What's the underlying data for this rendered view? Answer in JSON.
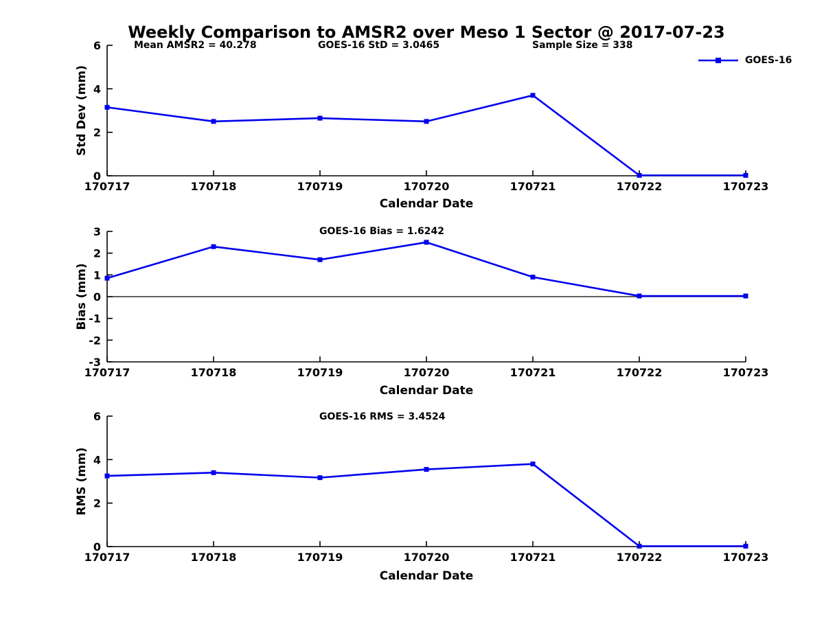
{
  "figure": {
    "title": "Weekly Comparison to AMSR2 over Meso 1 Sector @ 2017-07-23",
    "legend": {
      "label": "GOES-16"
    },
    "series_color": "#0000EE",
    "axis_color": "#000000"
  },
  "chart_data": [
    {
      "type": "line",
      "name": "std-dev",
      "ylabel": "Std Dev (mm)",
      "xlabel": "Calendar Date",
      "categories": [
        "170717",
        "170718",
        "170719",
        "170720",
        "170721",
        "170722",
        "170723"
      ],
      "series": [
        {
          "name": "GOES-16",
          "values": [
            3.15,
            2.5,
            2.65,
            2.5,
            3.7,
            0.02,
            0.02
          ]
        }
      ],
      "ylim": [
        0,
        6
      ],
      "yticks": [
        0,
        2,
        4,
        6
      ],
      "zero_line": false,
      "grid": false,
      "legend_position": "upper right",
      "annotations": [
        "Mean AMSR2 = 40.278",
        "GOES-16 StD = 3.0465",
        "Sample Size = 338"
      ]
    },
    {
      "type": "line",
      "name": "bias",
      "ylabel": "Bias (mm)",
      "xlabel": "Calendar Date",
      "categories": [
        "170717",
        "170718",
        "170719",
        "170720",
        "170721",
        "170722",
        "170723"
      ],
      "series": [
        {
          "name": "GOES-16",
          "values": [
            0.85,
            2.3,
            1.7,
            2.5,
            0.9,
            0.03,
            0.03
          ]
        }
      ],
      "ylim": [
        -3,
        3
      ],
      "yticks": [
        -3,
        -2,
        -1,
        0,
        1,
        2,
        3
      ],
      "zero_line": true,
      "grid": false,
      "annotations": [
        "GOES-16 Bias  = 1.6242"
      ]
    },
    {
      "type": "line",
      "name": "rms",
      "ylabel": "RMS (mm)",
      "xlabel": "Calendar Date",
      "categories": [
        "170717",
        "170718",
        "170719",
        "170720",
        "170721",
        "170722",
        "170723"
      ],
      "series": [
        {
          "name": "GOES-16",
          "values": [
            3.25,
            3.4,
            3.17,
            3.55,
            3.8,
            0.02,
            0.02
          ]
        }
      ],
      "ylim": [
        0,
        6
      ],
      "yticks": [
        0,
        2,
        4,
        6
      ],
      "zero_line": false,
      "grid": false,
      "annotations": [
        "GOES-16 RMS = 3.4524"
      ]
    }
  ]
}
